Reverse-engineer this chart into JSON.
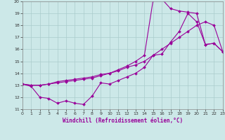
{
  "xlabel": "Windchill (Refroidissement éolien,°C)",
  "background_color": "#cce8e8",
  "grid_color": "#aacccc",
  "line_color": "#990099",
  "xlim": [
    0,
    23
  ],
  "ylim": [
    11,
    20
  ],
  "xticks": [
    0,
    1,
    2,
    3,
    4,
    5,
    6,
    7,
    8,
    9,
    10,
    11,
    12,
    13,
    14,
    15,
    16,
    17,
    18,
    19,
    20,
    21,
    22,
    23
  ],
  "yticks": [
    11,
    12,
    13,
    14,
    15,
    16,
    17,
    18,
    19,
    20
  ],
  "line1_x": [
    0,
    1,
    2,
    3,
    4,
    5,
    6,
    7,
    8,
    9,
    10,
    11,
    12,
    13,
    14,
    15,
    16,
    17,
    18,
    19,
    20,
    21,
    22,
    23
  ],
  "line1_y": [
    13.1,
    12.9,
    12.0,
    11.9,
    11.5,
    11.7,
    11.5,
    11.4,
    12.1,
    13.2,
    13.1,
    13.4,
    13.7,
    14.0,
    14.5,
    15.5,
    15.6,
    16.6,
    17.5,
    19.0,
    18.3,
    16.4,
    16.5,
    15.8
  ],
  "line2_x": [
    0,
    1,
    2,
    3,
    4,
    5,
    6,
    7,
    8,
    9,
    10,
    11,
    12,
    13,
    14,
    15,
    16,
    17,
    18,
    19,
    20,
    21,
    22,
    23
  ],
  "line2_y": [
    13.1,
    13.0,
    13.0,
    13.1,
    13.3,
    13.4,
    13.5,
    13.6,
    13.7,
    13.9,
    14.0,
    14.2,
    14.5,
    14.7,
    15.0,
    15.5,
    16.0,
    16.5,
    17.0,
    17.5,
    18.0,
    18.3,
    18.0,
    15.8
  ],
  "line3_x": [
    0,
    1,
    2,
    3,
    4,
    5,
    6,
    7,
    8,
    9,
    10,
    11,
    12,
    13,
    14,
    15,
    16,
    17,
    18,
    19,
    20,
    21,
    22,
    23
  ],
  "line3_y": [
    13.1,
    13.0,
    13.0,
    13.1,
    13.2,
    13.3,
    13.4,
    13.5,
    13.6,
    13.8,
    14.0,
    14.3,
    14.6,
    15.0,
    15.5,
    20.1,
    20.2,
    19.4,
    19.2,
    19.1,
    19.0,
    16.4,
    16.5,
    15.8
  ]
}
